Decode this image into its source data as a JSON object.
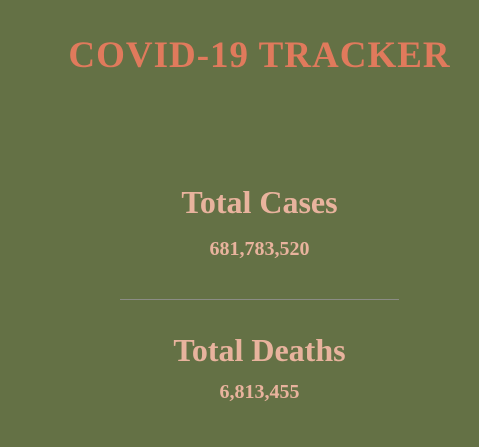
{
  "header": {
    "title": "COVID-19 TRACKER"
  },
  "stats": {
    "cases": {
      "label": "Total Cases",
      "value": "681,783,520"
    },
    "deaths": {
      "label": "Total Deaths",
      "value": "6,813,455"
    }
  },
  "colors": {
    "background": "#647145",
    "title": "#e07a5c",
    "text": "#e8b39d",
    "divider": "#8a8c84"
  }
}
